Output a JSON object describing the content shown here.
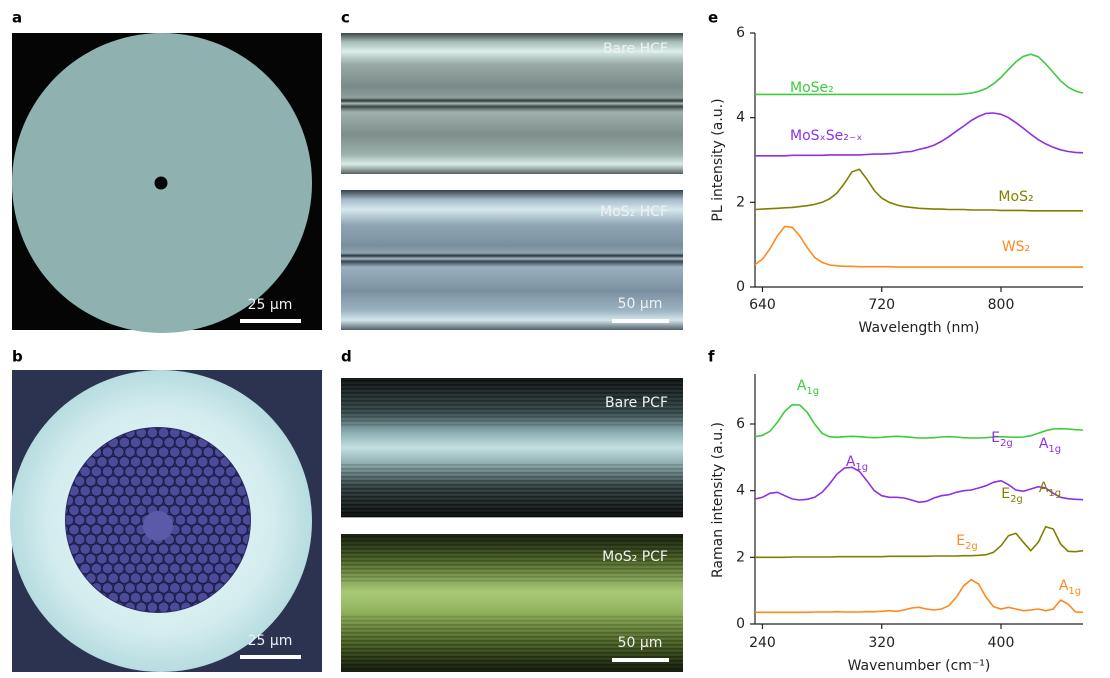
{
  "images": [
    {
      "panel": "a",
      "scale_bar": "25 μm"
    },
    {
      "panel": "b",
      "scale_bar": "25 μm"
    },
    {
      "panel": "c",
      "frames": [
        {
          "caption": "Bare HCF"
        },
        {
          "caption": "MoS₂ HCF",
          "scale_bar": "50 μm"
        }
      ]
    },
    {
      "panel": "d",
      "frames": [
        {
          "caption": "Bare PCF"
        },
        {
          "caption": "MoS₂ PCF",
          "scale_bar": "50 μm"
        }
      ]
    }
  ],
  "chart_data": [
    {
      "type": "line",
      "panel": "e",
      "xlabel": "Wavelength (nm)",
      "ylabel": "PL intensity (a.u.)",
      "x": [
        635,
        640,
        645,
        650,
        655,
        660,
        665,
        670,
        675,
        680,
        685,
        690,
        695,
        700,
        705,
        710,
        715,
        720,
        725,
        730,
        735,
        740,
        745,
        750,
        755,
        760,
        765,
        770,
        775,
        780,
        785,
        790,
        795,
        800,
        805,
        810,
        815,
        820,
        825,
        830,
        835,
        840,
        845,
        850,
        855
      ],
      "xlim": [
        635,
        855
      ],
      "xticks": [
        640,
        720,
        800
      ],
      "ylim": [
        0,
        6
      ],
      "yticks": [
        0,
        2,
        4,
        6
      ],
      "series": [
        {
          "name": "MoSe₂",
          "color": "#3ccc3c",
          "values": [
            4.55,
            4.55,
            4.55,
            4.55,
            4.55,
            4.55,
            4.55,
            4.55,
            4.55,
            4.55,
            4.55,
            4.55,
            4.55,
            4.55,
            4.55,
            4.55,
            4.55,
            4.55,
            4.55,
            4.55,
            4.55,
            4.55,
            4.55,
            4.55,
            4.55,
            4.55,
            4.55,
            4.55,
            4.56,
            4.58,
            4.62,
            4.69,
            4.8,
            4.95,
            5.14,
            5.32,
            5.45,
            5.5,
            5.44,
            5.27,
            5.07,
            4.87,
            4.72,
            4.63,
            4.58
          ]
        },
        {
          "name": "MoSₓSe₂₋ₓ",
          "color": "#9030e0",
          "values": [
            3.1,
            3.1,
            3.1,
            3.1,
            3.1,
            3.11,
            3.11,
            3.11,
            3.11,
            3.11,
            3.12,
            3.12,
            3.12,
            3.12,
            3.12,
            3.13,
            3.14,
            3.14,
            3.15,
            3.16,
            3.19,
            3.2,
            3.25,
            3.29,
            3.35,
            3.44,
            3.55,
            3.68,
            3.8,
            3.93,
            4.03,
            4.1,
            4.11,
            4.08,
            4.0,
            3.88,
            3.75,
            3.61,
            3.48,
            3.38,
            3.3,
            3.24,
            3.2,
            3.18,
            3.17
          ]
        },
        {
          "name": "MoS₂",
          "color": "#808000",
          "values": [
            1.83,
            1.84,
            1.85,
            1.86,
            1.87,
            1.88,
            1.9,
            1.92,
            1.95,
            2.0,
            2.08,
            2.22,
            2.45,
            2.72,
            2.78,
            2.55,
            2.28,
            2.1,
            2.0,
            1.94,
            1.9,
            1.88,
            1.86,
            1.85,
            1.84,
            1.84,
            1.83,
            1.83,
            1.83,
            1.82,
            1.82,
            1.82,
            1.82,
            1.81,
            1.81,
            1.81,
            1.81,
            1.8,
            1.8,
            1.8,
            1.8,
            1.8,
            1.8,
            1.8,
            1.8
          ]
        },
        {
          "name": "WS₂",
          "color": "#ff8a1c",
          "values": [
            0.53,
            0.66,
            0.9,
            1.21,
            1.43,
            1.41,
            1.21,
            0.93,
            0.7,
            0.58,
            0.52,
            0.5,
            0.49,
            0.49,
            0.48,
            0.48,
            0.48,
            0.48,
            0.48,
            0.47,
            0.47,
            0.47,
            0.47,
            0.47,
            0.47,
            0.47,
            0.47,
            0.47,
            0.47,
            0.47,
            0.47,
            0.47,
            0.47,
            0.47,
            0.47,
            0.47,
            0.47,
            0.47,
            0.47,
            0.47,
            0.47,
            0.47,
            0.47,
            0.47,
            0.47
          ]
        }
      ]
    },
    {
      "type": "line",
      "panel": "f",
      "xlabel": "Wavenumber (cm⁻¹)",
      "ylabel": "Raman intensity (a.u.)",
      "x": [
        235,
        240,
        245,
        250,
        255,
        260,
        265,
        270,
        275,
        280,
        285,
        290,
        295,
        300,
        305,
        310,
        315,
        320,
        325,
        330,
        335,
        340,
        345,
        350,
        355,
        360,
        365,
        370,
        375,
        380,
        385,
        390,
        395,
        400,
        405,
        410,
        415,
        420,
        425,
        430,
        435,
        440,
        445,
        450,
        455
      ],
      "xlim": [
        235,
        455
      ],
      "xticks": [
        240,
        320,
        400
      ],
      "ylim": [
        0,
        7.5
      ],
      "yticks": [
        0,
        2,
        4,
        6
      ],
      "series": [
        {
          "color": "#3ccc3c",
          "peak_labels": [
            {
              "base": "A",
              "sub": "1g"
            }
          ],
          "values": [
            5.62,
            5.66,
            5.78,
            6.05,
            6.38,
            6.58,
            6.57,
            6.35,
            6.0,
            5.72,
            5.62,
            5.6,
            5.62,
            5.63,
            5.62,
            5.6,
            5.59,
            5.6,
            5.62,
            5.63,
            5.62,
            5.6,
            5.58,
            5.58,
            5.59,
            5.61,
            5.62,
            5.61,
            5.59,
            5.58,
            5.58,
            5.59,
            5.61,
            5.62,
            5.61,
            5.6,
            5.61,
            5.65,
            5.72,
            5.8,
            5.85,
            5.86,
            5.85,
            5.83,
            5.82
          ]
        },
        {
          "color": "#9030e0",
          "peak_labels": [
            {
              "base": "A",
              "sub": "1g"
            },
            {
              "base": "E",
              "sub": "2g"
            },
            {
              "base": "A",
              "sub": "1g"
            }
          ],
          "values": [
            3.75,
            3.8,
            3.92,
            3.95,
            3.85,
            3.75,
            3.72,
            3.74,
            3.8,
            3.95,
            4.2,
            4.5,
            4.68,
            4.7,
            4.58,
            4.3,
            4.0,
            3.85,
            3.8,
            3.8,
            3.78,
            3.72,
            3.65,
            3.68,
            3.78,
            3.85,
            3.88,
            3.95,
            4.0,
            4.02,
            4.08,
            4.15,
            4.25,
            4.3,
            4.18,
            4.02,
            3.98,
            4.05,
            4.12,
            4.08,
            3.92,
            3.8,
            3.76,
            3.74,
            3.73
          ]
        },
        {
          "color": "#808000",
          "peak_labels": [
            {
              "base": "E",
              "sub": "2g"
            },
            {
              "base": "A",
              "sub": "1g"
            }
          ],
          "values": [
            2.0,
            2.0,
            2.0,
            2.0,
            2.0,
            2.01,
            2.01,
            2.01,
            2.01,
            2.01,
            2.01,
            2.02,
            2.02,
            2.02,
            2.02,
            2.02,
            2.02,
            2.02,
            2.03,
            2.03,
            2.03,
            2.03,
            2.03,
            2.03,
            2.04,
            2.04,
            2.04,
            2.04,
            2.05,
            2.05,
            2.06,
            2.08,
            2.15,
            2.35,
            2.65,
            2.72,
            2.45,
            2.2,
            2.45,
            2.92,
            2.85,
            2.4,
            2.18,
            2.17,
            2.2
          ]
        },
        {
          "color": "#ff8a1c",
          "peak_labels": [
            {
              "base": "E",
              "sub": "2g"
            },
            {
              "base": "A",
              "sub": "1g"
            }
          ],
          "values": [
            0.35,
            0.35,
            0.35,
            0.35,
            0.35,
            0.35,
            0.35,
            0.35,
            0.36,
            0.36,
            0.36,
            0.37,
            0.36,
            0.36,
            0.36,
            0.37,
            0.37,
            0.38,
            0.4,
            0.38,
            0.42,
            0.48,
            0.5,
            0.45,
            0.42,
            0.45,
            0.55,
            0.8,
            1.15,
            1.33,
            1.2,
            0.8,
            0.52,
            0.45,
            0.5,
            0.45,
            0.4,
            0.42,
            0.45,
            0.4,
            0.45,
            0.72,
            0.6,
            0.36,
            0.35
          ]
        }
      ]
    }
  ]
}
